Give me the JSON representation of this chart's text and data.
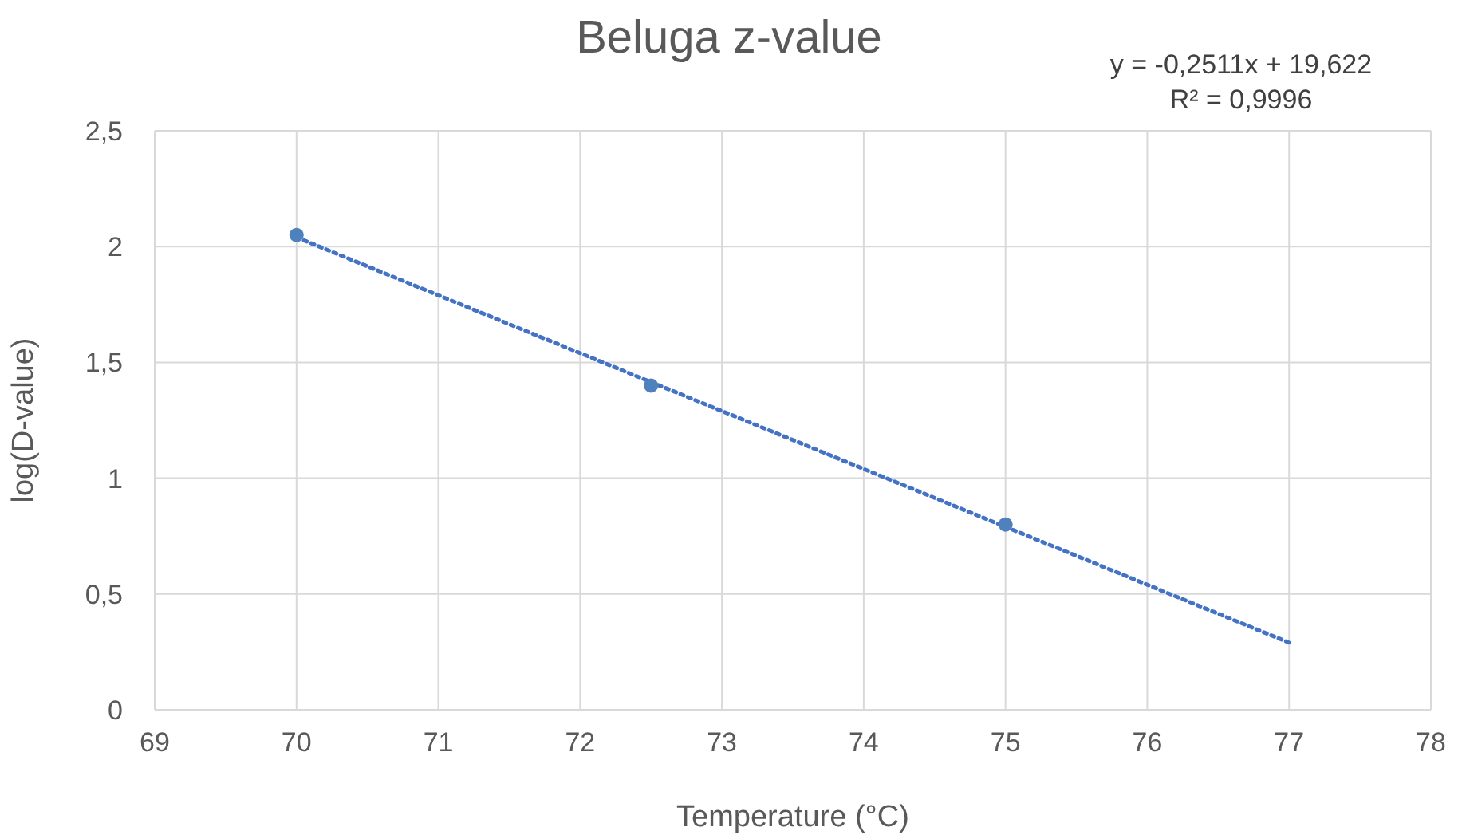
{
  "chart_data": {
    "type": "scatter",
    "title": "Beluga z-value",
    "xlabel": "Temperature (°C)",
    "ylabel": "log(D-value)",
    "annotations": [
      "y = -0,2511x + 19,622",
      "R² = 0,9996"
    ],
    "series": [
      {
        "type": "scatter",
        "color": "#4f81bd",
        "x": [
          70,
          72.5,
          75
        ],
        "values": [
          2.05,
          1.4,
          0.8
        ],
        "marker": "circle"
      },
      {
        "type": "line",
        "color": "#4472c4",
        "x": [
          70,
          77
        ],
        "values": [
          2.04,
          0.29
        ],
        "line_style": "dotted",
        "marker": "none"
      }
    ],
    "xlim": [
      69,
      78
    ],
    "xticks": [
      69,
      70,
      71,
      72,
      73,
      74,
      75,
      76,
      77,
      78
    ],
    "ylim": [
      0,
      2.5
    ],
    "yticks": [
      0,
      {
        "value": 0.5,
        "label": "0,5"
      },
      1,
      {
        "value": 1.5,
        "label": "1,5"
      },
      2,
      {
        "value": 2.5,
        "label": "2,5"
      }
    ],
    "grid": true
  }
}
